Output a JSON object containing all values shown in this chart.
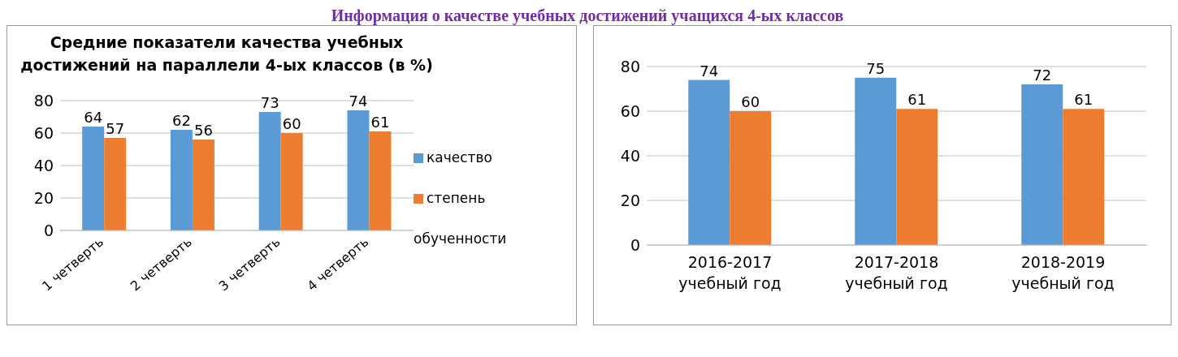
{
  "chart_data": [
    {
      "type": "bar",
      "title": "Средние показатели качества учебных достижений на параллели 4-ых классов (в %)",
      "annotations": [
        "Информация о качестве учебных достижений учащихся 4-ых классов"
      ],
      "categories": [
        "1 четверть",
        "2 четверть",
        "3 четверть",
        "4 четверть"
      ],
      "series": [
        {
          "name": "качество",
          "color": "#5b9bd5",
          "values": [
            64,
            62,
            73,
            74
          ]
        },
        {
          "name": "степень обученности",
          "color": "#ed7d31",
          "values": [
            57,
            56,
            60,
            61
          ]
        }
      ],
      "ylim": [
        0,
        80
      ],
      "yticks": [
        0,
        20,
        40,
        60,
        80
      ],
      "grid": "y",
      "legend": "right",
      "data_labels": true
    },
    {
      "type": "bar",
      "categories": [
        "2016-2017\nучебный год",
        "2017-2018\nучебный год",
        "2018-2019\nучебный год"
      ],
      "series": [
        {
          "color": "#5b9bd5",
          "values": [
            74,
            75,
            72
          ]
        },
        {
          "color": "#ed7d31",
          "values": [
            60,
            61,
            61
          ]
        }
      ],
      "ylim": [
        0,
        80
      ],
      "yticks": [
        0,
        20,
        40,
        60,
        80
      ],
      "grid": "y",
      "legend": false,
      "data_labels": true
    }
  ]
}
